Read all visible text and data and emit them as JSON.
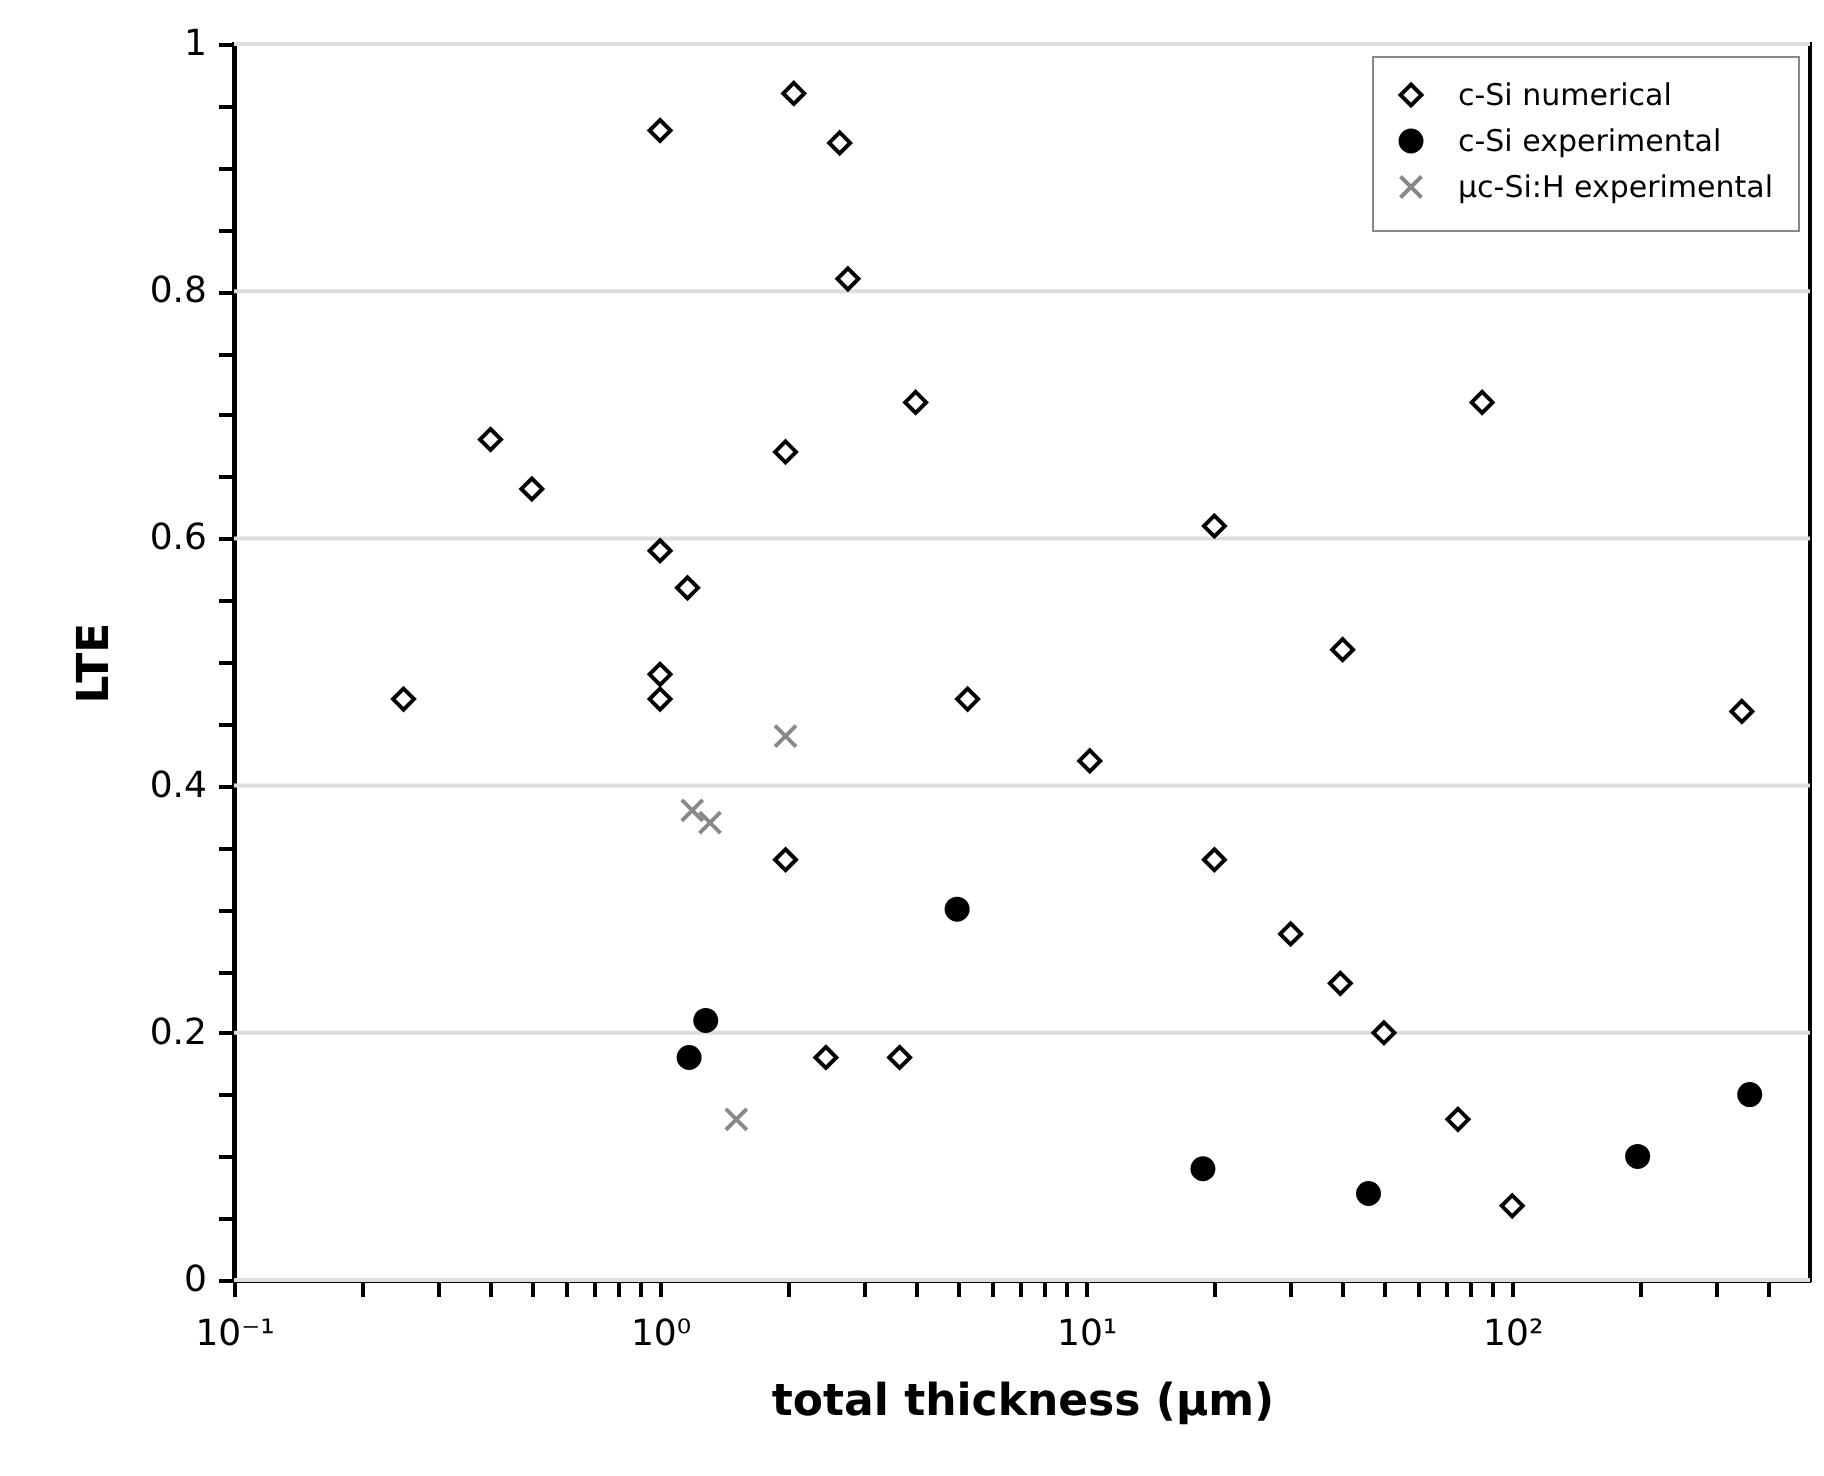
{
  "chart_data": {
    "type": "scatter",
    "xlabel": "total thickness (µm)",
    "ylabel": "LTE",
    "log": "x",
    "grid": "y",
    "legend": "top right",
    "xlim": [
      0.1,
      500
    ],
    "ylim": [
      0,
      1
    ],
    "xticks": [
      {
        "value": 0.1,
        "label": "10⁻¹"
      },
      {
        "value": 0.2,
        "label": null
      },
      {
        "value": 0.3,
        "label": null
      },
      {
        "value": 0.4,
        "label": null
      },
      {
        "value": 0.5,
        "label": null
      },
      {
        "value": 0.6,
        "label": null
      },
      {
        "value": 0.7,
        "label": null
      },
      {
        "value": 0.8,
        "label": null
      },
      {
        "value": 0.9,
        "label": null
      },
      {
        "value": 1,
        "label": "10⁰"
      },
      {
        "value": 2,
        "label": null
      },
      {
        "value": 3,
        "label": null
      },
      {
        "value": 4,
        "label": null
      },
      {
        "value": 5,
        "label": null
      },
      {
        "value": 6,
        "label": null
      },
      {
        "value": 7,
        "label": null
      },
      {
        "value": 8,
        "label": null
      },
      {
        "value": 9,
        "label": null
      },
      {
        "value": 10,
        "label": "10¹"
      },
      {
        "value": 20,
        "label": null
      },
      {
        "value": 30,
        "label": null
      },
      {
        "value": 40,
        "label": null
      },
      {
        "value": 50,
        "label": null
      },
      {
        "value": 60,
        "label": null
      },
      {
        "value": 70,
        "label": null
      },
      {
        "value": 80,
        "label": null
      },
      {
        "value": 90,
        "label": null
      },
      {
        "value": 100,
        "label": "10²"
      },
      {
        "value": 200,
        "label": null
      },
      {
        "value": 300,
        "label": null
      },
      {
        "value": 400,
        "label": null
      }
    ],
    "yticks": [
      0,
      {
        "value": 0.05,
        "label": null
      },
      {
        "value": 0.1,
        "label": null
      },
      {
        "value": 0.15,
        "label": null
      },
      0.2,
      {
        "value": 0.25,
        "label": null
      },
      {
        "value": 0.3,
        "label": null
      },
      {
        "value": 0.35,
        "label": null
      },
      0.4,
      {
        "value": 0.45,
        "label": null
      },
      {
        "value": 0.5,
        "label": null
      },
      {
        "value": 0.55,
        "label": null
      },
      0.6,
      {
        "value": 0.65,
        "label": null
      },
      {
        "value": 0.7,
        "label": null
      },
      {
        "value": 0.75,
        "label": null
      },
      0.8,
      {
        "value": 0.85,
        "label": null
      },
      {
        "value": 0.9,
        "label": null
      },
      {
        "value": 0.95,
        "label": null
      },
      1
    ],
    "series": [
      {
        "name": "c-Si numerical",
        "color": "#000000",
        "marker": "diamond",
        "x": [
          0.25,
          0.4,
          0.5,
          1,
          1,
          1.16,
          1,
          1,
          2.06,
          2.64,
          2.76,
          3.98,
          1.97,
          5.27,
          1.97,
          2.45,
          3.65,
          10.2,
          20,
          20,
          30.2,
          39.5,
          40,
          50,
          74.6,
          85,
          100,
          346
        ],
        "values": [
          0.47,
          0.68,
          0.64,
          0.93,
          0.59,
          0.56,
          0.49,
          0.47,
          0.96,
          0.92,
          0.81,
          0.71,
          0.67,
          0.47,
          0.34,
          0.18,
          0.18,
          0.42,
          0.61,
          0.34,
          0.28,
          0.24,
          0.51,
          0.2,
          0.13,
          0.71,
          0.06,
          0.46
        ]
      },
      {
        "name": "c-Si experimental",
        "color": "#000000",
        "marker": "circle",
        "x": [
          1.17,
          1.28,
          4.98,
          18.8,
          46,
          197,
          361
        ],
        "values": [
          0.18,
          0.21,
          0.3,
          0.09,
          0.07,
          0.1,
          0.15
        ]
      },
      {
        "name": "μc-Si:H experimental",
        "color": "#888888",
        "marker": "cross",
        "x": [
          1.19,
          1.31,
          1.97,
          1.51
        ],
        "values": [
          0.38,
          0.37,
          0.44,
          0.13
        ]
      }
    ]
  }
}
